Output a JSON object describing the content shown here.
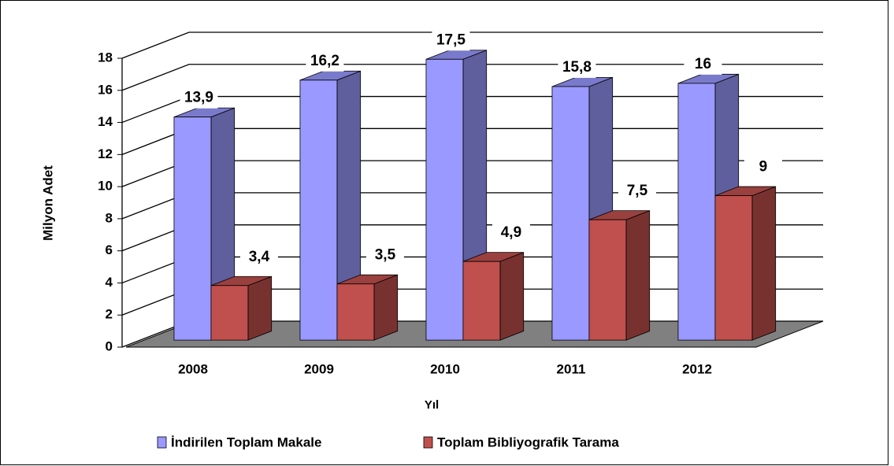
{
  "chart_data": {
    "type": "bar3d",
    "categories": [
      "2008",
      "2009",
      "2010",
      "2011",
      "2012"
    ],
    "series": [
      {
        "name": "İndirilen Toplam Makale",
        "color": "#9999ff",
        "values": [
          13.9,
          16.2,
          17.5,
          15.8,
          16
        ],
        "value_labels": [
          "13,9",
          "16,2",
          "17,5",
          "15,8",
          "16"
        ]
      },
      {
        "name": "Toplam Bibliyografik Tarama",
        "color": "#c0504d",
        "values": [
          3.4,
          3.5,
          4.9,
          7.5,
          9
        ],
        "value_labels": [
          "3,4",
          "3,5",
          "4,9",
          "7,5",
          "9"
        ]
      }
    ],
    "ylim": [
      0,
      18
    ],
    "yticks": [
      0,
      2,
      4,
      6,
      8,
      10,
      12,
      14,
      16,
      18
    ],
    "y_label": "Milyon Adet",
    "x_label": "Yıl",
    "grid": true,
    "legend": "bottom"
  }
}
